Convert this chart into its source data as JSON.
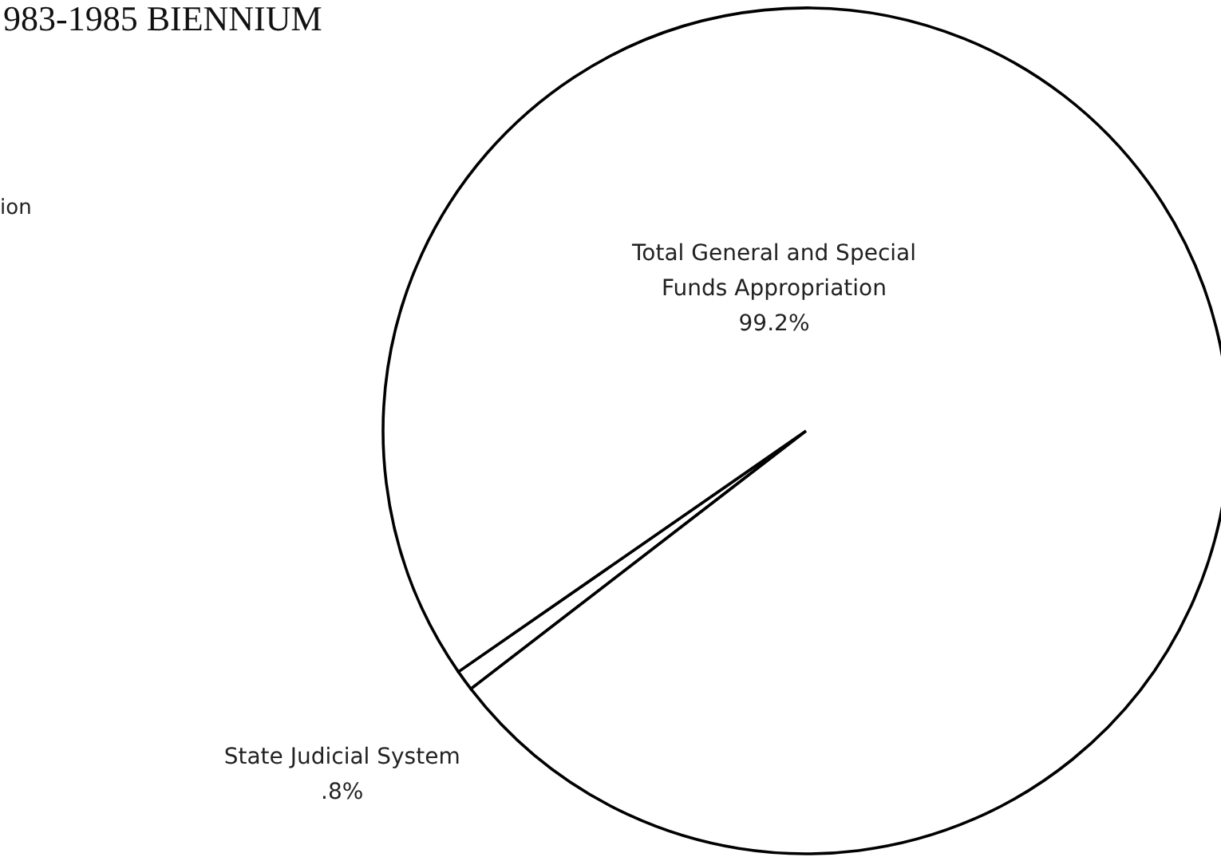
{
  "chart_data": {
    "type": "pie",
    "title": "983-1985 BIENNIUM",
    "categories": [
      "State Judicial System",
      "Total General and Special Funds Appropriation"
    ],
    "values": [
      0.8,
      99.2
    ],
    "value_labels": [
      ".8%",
      "99.2%"
    ],
    "colors": [
      "#ffffff",
      "#ffffff"
    ],
    "annotations": [
      "ion"
    ],
    "legend": false
  }
}
